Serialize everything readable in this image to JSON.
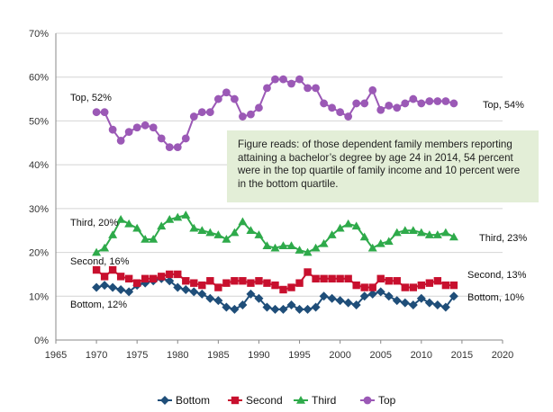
{
  "chart_data": {
    "type": "line",
    "title": "",
    "xlabel": "",
    "ylabel": "",
    "xlim": [
      1965,
      2020
    ],
    "ylim": [
      0,
      70
    ],
    "x_ticks": [
      "1965",
      "1970",
      "1975",
      "1980",
      "1985",
      "1990",
      "1995",
      "2000",
      "2005",
      "2010",
      "2015",
      "2020"
    ],
    "y_ticks": [
      "0%",
      "10%",
      "20%",
      "30%",
      "40%",
      "50%",
      "60%",
      "70%"
    ],
    "grid": "horizontal",
    "legend_position": "bottom",
    "annotation": "Figure reads: of those dependent family members reporting attaining a bachelor’s degree by age 24 in 2014, 54 percent were in the top quartile of family income and 10 percent were in the bottom quartile.",
    "x": [
      1970,
      1971,
      1972,
      1973,
      1974,
      1975,
      1976,
      1977,
      1978,
      1979,
      1980,
      1981,
      1982,
      1983,
      1984,
      1985,
      1986,
      1987,
      1988,
      1989,
      1990,
      1991,
      1992,
      1993,
      1994,
      1995,
      1996,
      1997,
      1998,
      1999,
      2000,
      2001,
      2002,
      2003,
      2004,
      2005,
      2006,
      2007,
      2008,
      2009,
      2010,
      2011,
      2012,
      2013,
      2014
    ],
    "series": [
      {
        "name": "Bottom",
        "color": "#1f4e79",
        "marker": "diamond",
        "start_label": "Bottom, 12%",
        "end_label": "Bottom, 10%",
        "values": [
          12,
          12.5,
          12,
          11.5,
          11,
          12.5,
          13,
          13.5,
          14,
          13.5,
          12,
          11.5,
          11,
          10.5,
          9.5,
          9,
          7.5,
          7,
          8,
          10.5,
          9.5,
          7.5,
          7,
          7,
          8,
          7,
          7,
          7.5,
          10,
          9.5,
          9,
          8.5,
          8,
          10,
          10.5,
          11,
          10,
          9,
          8.5,
          8,
          9.5,
          8.5,
          8,
          7.5,
          10
        ]
      },
      {
        "name": "Second",
        "color": "#c8102e",
        "marker": "square",
        "start_label": "Second, 16%",
        "end_label": "Second, 13%",
        "values": [
          16,
          14.5,
          16,
          14.5,
          14,
          13,
          14,
          14,
          14.5,
          15,
          15,
          13.5,
          13,
          12.5,
          13.5,
          12,
          13,
          13.5,
          13.5,
          13,
          13.5,
          13,
          12.5,
          11.5,
          12,
          13,
          15.5,
          14,
          14,
          14,
          14,
          14,
          12.5,
          12,
          12,
          14,
          13.5,
          13.5,
          12,
          12,
          12.5,
          13,
          13.5,
          12.5,
          12.5
        ]
      },
      {
        "name": "Third",
        "color": "#2eaa4a",
        "marker": "triangle",
        "start_label": "Third, 20%",
        "end_label": "Third, 23%",
        "values": [
          20,
          21,
          24,
          27.5,
          26.5,
          25.5,
          23,
          23,
          26,
          27.5,
          28,
          28.5,
          25.5,
          25,
          24.5,
          24,
          23,
          24.5,
          27,
          25,
          24,
          21.5,
          21,
          21.5,
          21.5,
          20.5,
          20,
          21,
          22,
          24,
          25.5,
          26.5,
          26,
          23.5,
          21,
          22,
          22.5,
          24.5,
          25,
          25,
          24.5,
          24,
          24,
          24.5,
          23.5
        ]
      },
      {
        "name": "Top",
        "color": "#9b59b6",
        "marker": "circle",
        "start_label": "Top, 52%",
        "end_label": "Top, 54%",
        "values": [
          52,
          52,
          48,
          45.5,
          47.5,
          48.5,
          49,
          48.5,
          46,
          44,
          44,
          46,
          51,
          52,
          52,
          55,
          56.5,
          55,
          51,
          51.5,
          53,
          57.5,
          59.5,
          59.5,
          58.5,
          59.5,
          57.5,
          57.5,
          54,
          53,
          52,
          51,
          54,
          54,
          57,
          52.5,
          53.5,
          53,
          54,
          55,
          54,
          54.5,
          54.5,
          54.5,
          54
        ]
      }
    ]
  }
}
